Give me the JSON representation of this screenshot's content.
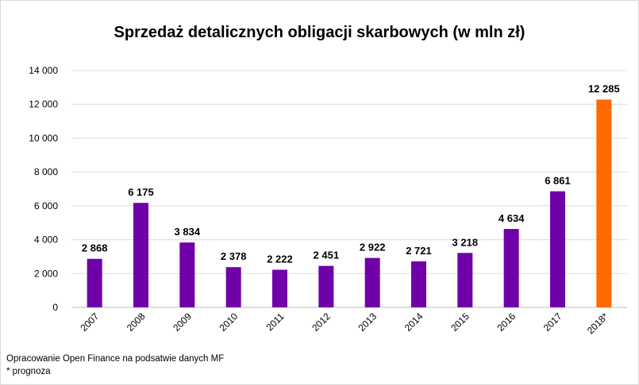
{
  "footer": {
    "source": "Opracowanie Open Finance na podsatwie danych MF",
    "note": "* prognoza"
  },
  "colors": {
    "bar": "#7000a8",
    "forecast": "#ff6a00",
    "grid": "#d9d9d9"
  },
  "chart_data": {
    "type": "bar",
    "title": "Sprzedaż detalicznych obligacji skarbowych (w mln zł)",
    "xlabel": "",
    "ylabel": "",
    "categories": [
      "2007",
      "2008",
      "2009",
      "2010",
      "2011",
      "2012",
      "2013",
      "2014",
      "2015",
      "2016",
      "2017",
      "2018*"
    ],
    "values": [
      2868,
      6175,
      3834,
      2378,
      2222,
      2451,
      2922,
      2721,
      3218,
      4634,
      6861,
      12285
    ],
    "value_labels": [
      "2 868",
      "6 175",
      "3 834",
      "2 378",
      "2 222",
      "2 451",
      "2 922",
      "2 721",
      "3 218",
      "4 634",
      "6 861",
      "12 285"
    ],
    "ylim": [
      0,
      14000
    ],
    "yticks": [
      0,
      2000,
      4000,
      6000,
      8000,
      10000,
      12000,
      14000
    ],
    "ytick_labels": [
      "0",
      "2 000",
      "4 000",
      "6 000",
      "8 000",
      "10 000",
      "12 000",
      "14 000"
    ],
    "grid": true,
    "legend": "none",
    "highlight": "2018*"
  }
}
